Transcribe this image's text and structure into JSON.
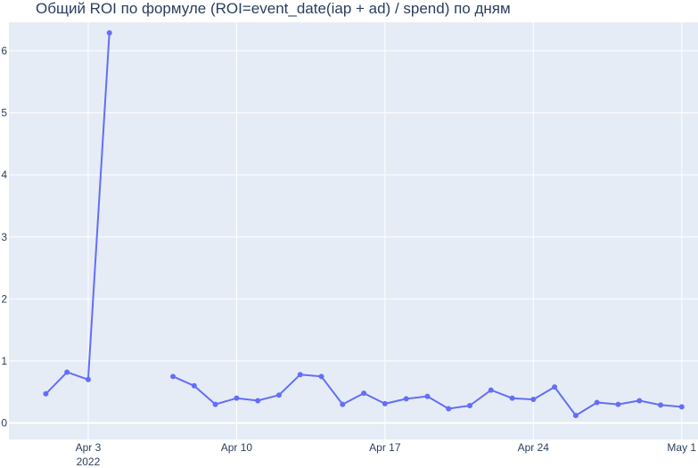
{
  "chart_data": {
    "type": "line",
    "title": "Общий ROI по формуле (ROI=event_date(iap + ad) / spend) по дням",
    "xlabel": "",
    "ylabel": "",
    "x_start": "2022-04-01",
    "x_range": [
      "2022-03-31",
      "2022-05-01"
    ],
    "ylim": [
      -0.22,
      6.95
    ],
    "x_ticks": [
      {
        "date": "2022-04-03",
        "label": "Apr 3",
        "sublabel": "2022"
      },
      {
        "date": "2022-04-10",
        "label": "Apr 10"
      },
      {
        "date": "2022-04-17",
        "label": "Apr 17"
      },
      {
        "date": "2022-04-24",
        "label": "Apr 24"
      },
      {
        "date": "2022-05-01",
        "label": "May 1"
      }
    ],
    "y_ticks": [
      0,
      1,
      2,
      3,
      4,
      5,
      6
    ],
    "grid": true,
    "color": "#636efa",
    "points": [
      {
        "date": "2022-04-01",
        "value": 0.47
      },
      {
        "date": "2022-04-02",
        "value": 0.82
      },
      {
        "date": "2022-04-03",
        "value": 0.7
      },
      {
        "date": "2022-04-04",
        "value": 6.29
      },
      {
        "date": "2022-04-05",
        "value": null
      },
      {
        "date": "2022-04-06",
        "value": null
      },
      {
        "date": "2022-04-07",
        "value": 0.75
      },
      {
        "date": "2022-04-08",
        "value": 0.6
      },
      {
        "date": "2022-04-09",
        "value": 0.3
      },
      {
        "date": "2022-04-10",
        "value": 0.4
      },
      {
        "date": "2022-04-11",
        "value": 0.36
      },
      {
        "date": "2022-04-12",
        "value": 0.45
      },
      {
        "date": "2022-04-13",
        "value": 0.78
      },
      {
        "date": "2022-04-14",
        "value": 0.75
      },
      {
        "date": "2022-04-15",
        "value": 0.3
      },
      {
        "date": "2022-04-16",
        "value": 0.48
      },
      {
        "date": "2022-04-17",
        "value": 0.31
      },
      {
        "date": "2022-04-18",
        "value": 0.39
      },
      {
        "date": "2022-04-19",
        "value": 0.43
      },
      {
        "date": "2022-04-20",
        "value": 0.23
      },
      {
        "date": "2022-04-21",
        "value": 0.28
      },
      {
        "date": "2022-04-22",
        "value": 0.53
      },
      {
        "date": "2022-04-23",
        "value": 0.4
      },
      {
        "date": "2022-04-24",
        "value": 0.38
      },
      {
        "date": "2022-04-25",
        "value": 0.58
      },
      {
        "date": "2022-04-26",
        "value": 0.12
      },
      {
        "date": "2022-04-27",
        "value": 0.33
      },
      {
        "date": "2022-04-28",
        "value": 0.3
      },
      {
        "date": "2022-04-29",
        "value": 0.36
      },
      {
        "date": "2022-04-30",
        "value": 0.29
      },
      {
        "date": "2022-05-01",
        "value": 0.26
      }
    ]
  }
}
